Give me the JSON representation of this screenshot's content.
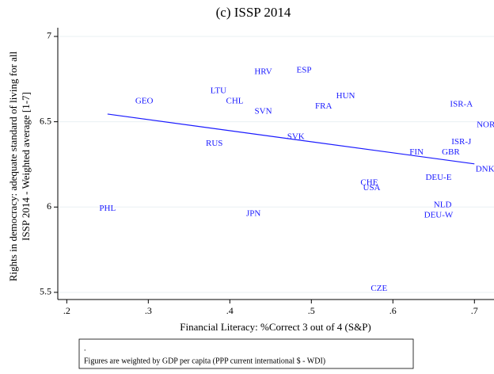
{
  "chart_data": {
    "type": "scatter",
    "title": "(c) ISSP 2014",
    "xlabel": "Financial Literacy: %Correct 3 out of 4 (S&P)",
    "ylabel": [
      "Rights in democracy: adequate standard of living for all",
      "ISSP 2014 - Weighted average [1-7]"
    ],
    "labels": [
      "PHL",
      "GEO",
      "LTU",
      "CHL",
      "HRV",
      "SVN",
      "ESP",
      "FRA",
      "HUN",
      "RUS",
      "SVK",
      "JPN",
      "CHE",
      "USA",
      "CZE",
      "FIN",
      "ISR-A",
      "NOR",
      "ISR-J",
      "GBR",
      "DNK",
      "DEU-E",
      "NLD",
      "DEU-W"
    ],
    "x": [
      0.25,
      0.295,
      0.386,
      0.406,
      0.441,
      0.441,
      0.491,
      0.515,
      0.542,
      0.381,
      0.481,
      0.429,
      0.571,
      0.574,
      0.583,
      0.629,
      0.684,
      0.714,
      0.684,
      0.671,
      0.713,
      0.656,
      0.661,
      0.656
    ],
    "y": [
      5.99,
      6.62,
      6.68,
      6.62,
      6.79,
      6.56,
      6.8,
      6.59,
      6.65,
      6.37,
      6.41,
      5.96,
      6.14,
      6.11,
      5.52,
      6.32,
      6.6,
      6.48,
      6.38,
      6.32,
      6.22,
      6.17,
      6.01,
      5.95
    ],
    "color": "#1a1aff",
    "fit_line": {
      "x": [
        0.25,
        0.7
      ],
      "y": [
        6.545,
        6.253
      ],
      "color": "#1a1aff"
    },
    "xlim": [
      0.189,
      0.724
    ],
    "ylim": [
      5.458,
      7.051
    ],
    "xticks": [
      {
        "value": 0.2,
        "label": ".2"
      },
      {
        "value": 0.3,
        "label": ".3"
      },
      {
        "value": 0.4,
        "label": ".4"
      },
      {
        "value": 0.5,
        "label": ".5"
      },
      {
        "value": 0.6,
        "label": ".6"
      },
      {
        "value": 0.7,
        "label": ".7"
      }
    ],
    "yticks": [
      5.5,
      6,
      6.5,
      7
    ],
    "grid": true,
    "note": [
      ".",
      "Figures are weighted by GDP per capita (PPP current international $ - WDI)"
    ]
  }
}
